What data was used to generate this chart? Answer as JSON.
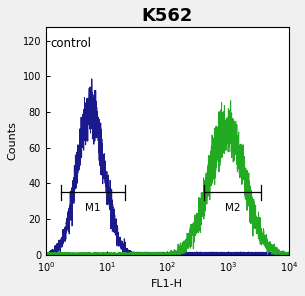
{
  "title": "K562",
  "title_fontsize": 13,
  "title_fontweight": "bold",
  "xlabel": "FL1-H",
  "ylabel": "Counts",
  "xlim_log": [
    1,
    10000
  ],
  "ylim": [
    0,
    128
  ],
  "yticks": [
    0,
    20,
    40,
    60,
    80,
    100,
    120
  ],
  "control_label": "control",
  "m1_label": "M1",
  "m2_label": "M2",
  "blue_color": "#1a1a8c",
  "green_color": "#22aa22",
  "blue_peak_x": 5.5,
  "blue_peak_y": 82,
  "blue_sigma_log": 0.22,
  "green_peak_x": 950,
  "green_peak_y": 70,
  "green_sigma_log": 0.3,
  "m1_x1": 1.8,
  "m1_x2": 20.0,
  "m1_y": 35,
  "m2_x1": 400,
  "m2_x2": 3500,
  "m2_y": 35,
  "bracket_tick_height": 4,
  "background_color": "#f0f0f0",
  "panel_color": "#ffffff"
}
